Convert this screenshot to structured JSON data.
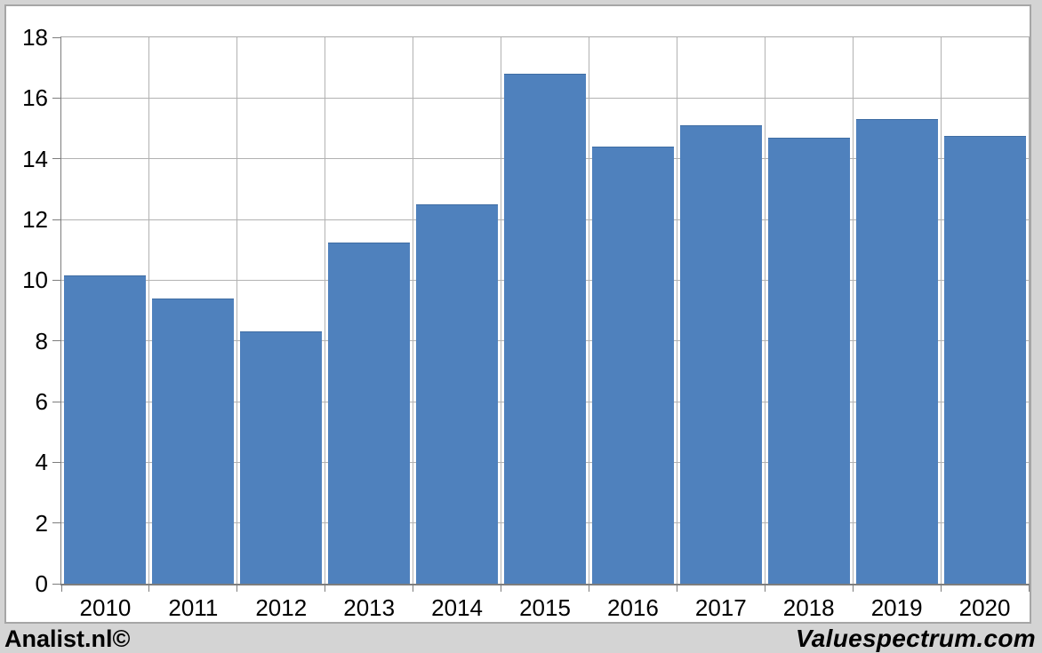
{
  "chart_data": {
    "type": "bar",
    "title": "",
    "categories": [
      "2010",
      "2011",
      "2012",
      "2013",
      "2014",
      "2015",
      "2016",
      "2017",
      "2018",
      "2019",
      "2020"
    ],
    "values": [
      10.15,
      9.4,
      8.3,
      11.25,
      12.5,
      16.8,
      14.4,
      15.1,
      14.7,
      15.3,
      14.75
    ],
    "xlabel": "",
    "ylabel": "",
    "ylim": [
      0,
      18
    ],
    "ytick_step": 2,
    "grid": true,
    "legend_position": "none",
    "bar_color": "#4f81bd",
    "bar_edge_color": "#3f6da3"
  },
  "footer": {
    "left_label": "Analist.nl©",
    "right_label": "Valuespectrum.com"
  },
  "colors": {
    "page_background": "#d4d4d4",
    "panel_background": "#ffffff",
    "panel_border": "#a6a6a6",
    "gridline": "#b2b2b2",
    "axis_line": "#7d7d7d",
    "text": "#000000"
  }
}
